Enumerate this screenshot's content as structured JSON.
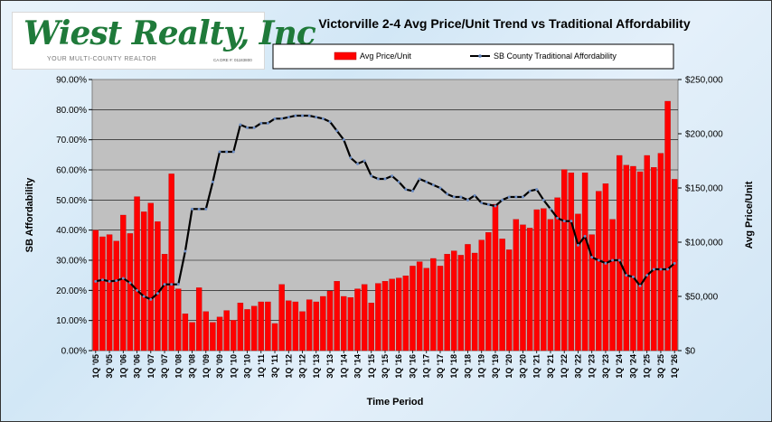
{
  "logo": {
    "name": "Wiest Realty, Inc",
    "tagline": "YOUR MULTI-COUNTY REALTOR",
    "license": "CA DRE #: 01183800"
  },
  "chart_data": {
    "type": "bar+line",
    "title": "Victorville 2-4 Avg Price/Unit Trend vs Traditional Affordability",
    "xlabel": "Time Period",
    "ylabel_left": "SB Affordability",
    "ylabel_right": "Avg Price/Unit",
    "ylim_left": [
      0,
      0.9
    ],
    "ylim_right": [
      0,
      250000
    ],
    "grid": true,
    "legend_position": "top",
    "yticks_left": [
      "0.00%",
      "10.00%",
      "20.00%",
      "30.00%",
      "40.00%",
      "50.00%",
      "60.00%",
      "70.00%",
      "80.00%",
      "90.00%"
    ],
    "yticks_right": [
      "$0",
      "$50,000",
      "$100,000",
      "$150,000",
      "$200,000",
      "$250,000"
    ],
    "x_tick_labels": [
      "1Q '05",
      "3Q '05",
      "1Q '06",
      "3Q '06",
      "1Q '07",
      "3Q '07",
      "1Q '08",
      "3Q '08",
      "1Q '09",
      "3Q '09",
      "1Q '10",
      "3Q '10",
      "1Q '11",
      "3Q '11",
      "1Q '12",
      "3Q '12",
      "1Q '13",
      "3Q '13",
      "1Q '14",
      "3Q '14",
      "1Q '15",
      "3Q '15",
      "1Q '16",
      "3Q '16",
      "1Q '17",
      "3Q '17",
      "1Q '18",
      "3Q '18",
      "1Q '19",
      "3Q '19",
      "1Q '20",
      "3Q '20",
      "1Q '21",
      "3Q '21",
      "1Q '22",
      "3Q '22",
      "1Q '23",
      "3Q '23",
      "1Q '24",
      "3Q '24",
      "1Q '25",
      "3Q '25",
      "1Q '26"
    ],
    "series": [
      {
        "name": "Avg Price/Unit",
        "type": "bar",
        "axis": "right",
        "color": "#ff0000",
        "values": [
          111000,
          105000,
          107000,
          101000,
          125000,
          108000,
          142000,
          128000,
          136000,
          119000,
          89000,
          163000,
          57000,
          34000,
          26000,
          58000,
          36000,
          26000,
          31000,
          37000,
          28000,
          44000,
          38000,
          41000,
          45000,
          45000,
          25000,
          61000,
          46000,
          45000,
          36000,
          47000,
          45000,
          50000,
          55000,
          64000,
          50000,
          49000,
          57000,
          61000,
          44000,
          62000,
          64000,
          66000,
          67000,
          69000,
          78000,
          82000,
          76000,
          85000,
          78000,
          89000,
          92000,
          88000,
          98000,
          90000,
          102000,
          109000,
          135000,
          103000,
          93000,
          121000,
          116000,
          113000,
          130000,
          131000,
          121000,
          141000,
          167000,
          164000,
          126000,
          164000,
          107000,
          147000,
          154000,
          121000,
          180000,
          171000,
          170000,
          165000,
          180000,
          169000,
          182000,
          230000,
          158000
        ]
      },
      {
        "name": "SB County Traditional Affordability",
        "type": "line",
        "axis": "left",
        "color": "#000000",
        "values": [
          0.23,
          0.235,
          0.23,
          0.232,
          0.24,
          0.225,
          0.2,
          0.18,
          0.17,
          0.19,
          0.22,
          0.22,
          0.22,
          0.33,
          0.47,
          0.47,
          0.47,
          0.56,
          0.66,
          0.66,
          0.66,
          0.75,
          0.74,
          0.74,
          0.755,
          0.755,
          0.77,
          0.77,
          0.775,
          0.78,
          0.78,
          0.78,
          0.775,
          0.77,
          0.76,
          0.73,
          0.7,
          0.64,
          0.62,
          0.63,
          0.58,
          0.57,
          0.57,
          0.58,
          0.56,
          0.535,
          0.53,
          0.57,
          0.56,
          0.55,
          0.54,
          0.52,
          0.51,
          0.51,
          0.5,
          0.515,
          0.49,
          0.485,
          0.48,
          0.5,
          0.51,
          0.51,
          0.51,
          0.53,
          0.535,
          0.5,
          0.47,
          0.44,
          0.43,
          0.43,
          0.35,
          0.38,
          0.31,
          0.3,
          0.29,
          0.3,
          0.3,
          0.25,
          0.245,
          0.215,
          0.25,
          0.27,
          0.27,
          0.27,
          0.29
        ]
      }
    ]
  }
}
